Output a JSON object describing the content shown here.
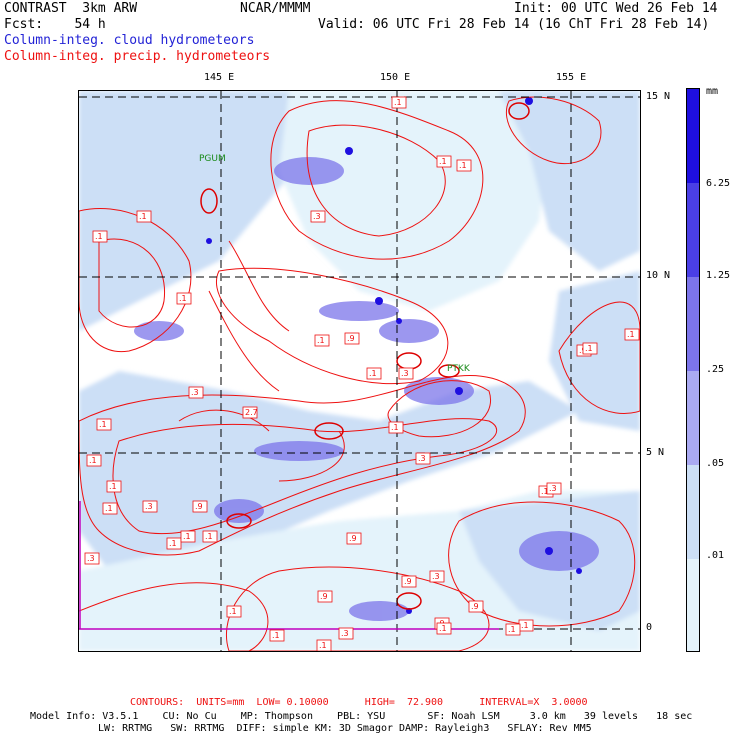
{
  "header": {
    "model": "CONTRAST  3km ARW",
    "center": "NCAR/MMMM",
    "init": "Init: 00 UTC Wed 26 Feb 14",
    "fcst": "Fcst:    54 h",
    "valid": "Valid: 06 UTC Fri 28 Feb 14 (16 ChT Fri 28 Feb 14)",
    "field1": "Column-integ. cloud hydrometeors",
    "field2": "Column-integ. precip. hydrometeors"
  },
  "axes": {
    "lon_labels": [
      "145 E",
      "150 E",
      "155 E"
    ],
    "lat_labels": [
      "15 N",
      "10 N",
      "5 N",
      "0"
    ]
  },
  "stations": [
    "PGUM",
    "PTKK"
  ],
  "legend": {
    "unit": "mm",
    "labels": [
      "6.25",
      "1.25",
      ".25",
      ".05",
      ".01"
    ],
    "colors": [
      "#1e0fe0",
      "#4a3fe6",
      "#7c75ea",
      "#aaaaf2",
      "#ccdff6",
      "#e4f3fb",
      "#ffffff"
    ]
  },
  "contour_labels": [
    ".1",
    ".1",
    ".1",
    ".1",
    ".1",
    ".9",
    ".1",
    ".3",
    ".3",
    ".1",
    ".1",
    ".1",
    ".9",
    ".1",
    ".3",
    "2.7",
    ".1",
    ".3",
    ".3",
    ".1",
    ".1",
    ".3",
    ".9",
    ".1",
    ".1",
    ".1",
    ".1",
    ".9",
    ".9",
    ".3",
    ".9",
    ".1",
    ".3",
    ".9",
    ".1",
    ".3",
    ".1",
    ".1",
    ".1",
    ".9",
    ".1",
    ".1",
    ".1"
  ],
  "footer": {
    "contours": "CONTOURS:  UNITS=mm  LOW= 0.10000      HIGH=  72.900      INTERVAL=X  3.0000",
    "line1": "Model Info: V3.5.1    CU: No Cu    MP: Thompson    PBL: YSU       SF: Noah LSM     3.0 km   39 levels   18 sec",
    "line2": "LW: RRTMG   SW: RRTMG  DIFF: simple KM: 3D Smagor DAMP: Rayleigh3   SFLAY: Rev MM5"
  }
}
